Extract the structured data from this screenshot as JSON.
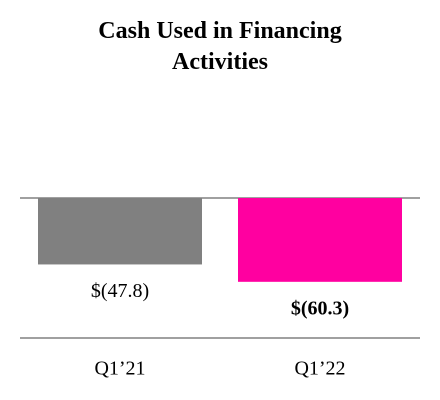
{
  "chart_data": {
    "type": "bar",
    "title": "Cash Used in Financing Activities",
    "categories": [
      "Q1’21",
      "Q1’22"
    ],
    "values": [
      -47.8,
      -60.3
    ],
    "value_labels": [
      "$(47.8)",
      "$(60.3)"
    ],
    "value_label_bold": [
      false,
      true
    ],
    "colors": [
      "#808080",
      "#ff00a0"
    ]
  }
}
